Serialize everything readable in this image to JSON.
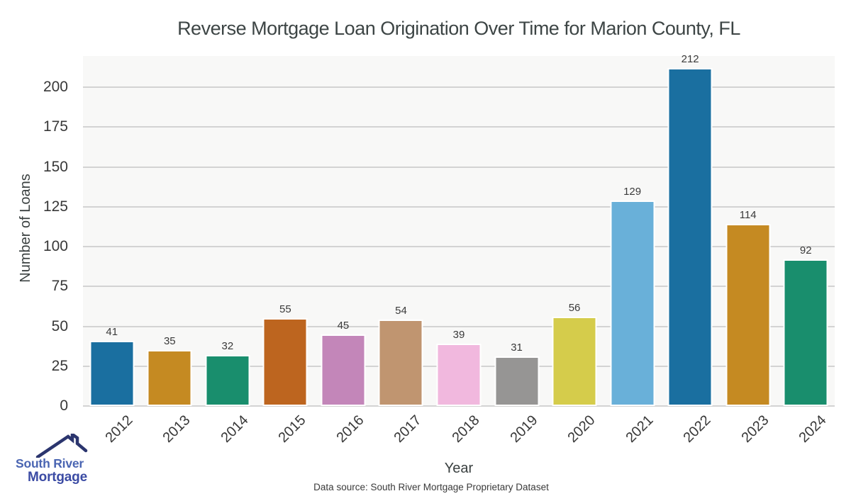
{
  "title": "Reverse Mortgage Loan Origination Over Time for Marion County, FL",
  "chart_data": {
    "type": "bar",
    "title": "Reverse Mortgage Loan Origination Over Time for Marion County, FL",
    "categories": [
      "2012",
      "2013",
      "2014",
      "2015",
      "2016",
      "2017",
      "2018",
      "2019",
      "2020",
      "2021",
      "2022",
      "2023",
      "2024"
    ],
    "values": [
      41,
      35,
      32,
      55,
      45,
      54,
      39,
      31,
      56,
      129,
      212,
      114,
      92
    ],
    "value_labels": [
      "41",
      "35",
      "32",
      "55",
      "45",
      "54",
      "39",
      "31",
      "56",
      "129",
      "212",
      "114",
      "92"
    ],
    "xlabel": "Year",
    "ylabel": "Number of Loans",
    "ylim": [
      0,
      219
    ],
    "yticks": [
      0,
      25,
      50,
      75,
      100,
      125,
      150,
      175,
      200
    ],
    "grid": "horizontal",
    "legend": "none",
    "bar_colors": [
      "#1a6fa0",
      "#c58a22",
      "#198e6d",
      "#bd651f",
      "#c386b9",
      "#c09570",
      "#f1b8de",
      "#969594",
      "#d5cc4b",
      "#69b0d9",
      "#1a6fa0",
      "#c58a22",
      "#198e6d"
    ]
  },
  "footer": {
    "source_note": "Data source: South River Mortgage Proprietary Dataset"
  },
  "logo": {
    "line1": "South River",
    "line2": "Mortgage",
    "colors": {
      "roof": "#2b356e",
      "line1": "#4a65b2",
      "line2": "#3b4ba4"
    }
  },
  "colors": {
    "figure_bg": "#ffffff",
    "plot_bg": "#f8f8f7",
    "grid": "#d3d3d3",
    "text": "#3a3a3a",
    "title": "#3d4545"
  }
}
